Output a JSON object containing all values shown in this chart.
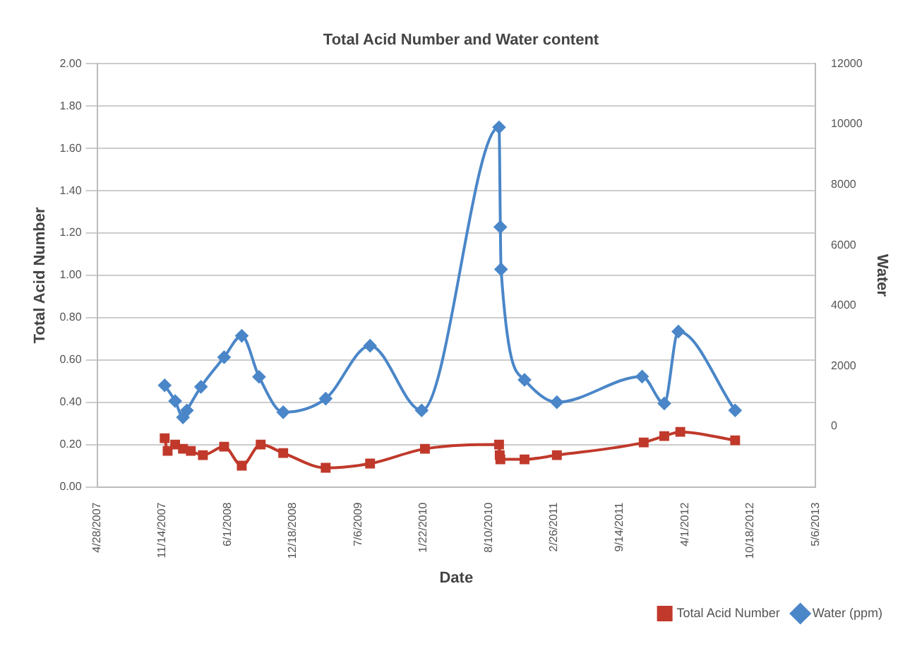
{
  "chart_data": {
    "type": "line",
    "title": "Total Acid Number and Water content",
    "xlabel": "Date",
    "ylabel": "Total Acid Number",
    "y2label": "Water",
    "grid": "y",
    "legend": "bottom right",
    "xlim": [
      "2007-04-28",
      "2013-05-06"
    ],
    "xticks": [
      {
        "value": "2007-04-28",
        "label": "4/28/2007"
      },
      {
        "value": "2007-11-14",
        "label": "11/14/2007"
      },
      {
        "value": "2008-06-01",
        "label": "6/1/2008"
      },
      {
        "value": "2008-12-18",
        "label": "12/18/2008"
      },
      {
        "value": "2009-07-06",
        "label": "7/6/2009"
      },
      {
        "value": "2010-01-22",
        "label": "1/22/2010"
      },
      {
        "value": "2010-08-10",
        "label": "8/10/2010"
      },
      {
        "value": "2011-02-26",
        "label": "2/26/2011"
      },
      {
        "value": "2011-09-14",
        "label": "9/14/2011"
      },
      {
        "value": "2012-04-01",
        "label": "4/1/2012"
      },
      {
        "value": "2012-10-18",
        "label": "10/18/2012"
      },
      {
        "value": "2013-05-06",
        "label": "5/6/2013"
      }
    ],
    "ylim": [
      0,
      2
    ],
    "yticks": [
      {
        "value": 0,
        "label": "0.00"
      },
      {
        "value": 0.2,
        "label": "0.20"
      },
      {
        "value": 0.4,
        "label": "0.40"
      },
      {
        "value": 0.6,
        "label": "0.60"
      },
      {
        "value": 0.8,
        "label": "0.80"
      },
      {
        "value": 1,
        "label": "1.00"
      },
      {
        "value": 1.2,
        "label": "1.20"
      },
      {
        "value": 1.4,
        "label": "1.40"
      },
      {
        "value": 1.6,
        "label": "1.60"
      },
      {
        "value": 1.8,
        "label": "1.80"
      },
      {
        "value": 2,
        "label": "2.00"
      }
    ],
    "y2lim": [
      -2000,
      12000
    ],
    "y2ticks": [
      0,
      2000,
      4000,
      6000,
      8000,
      10000,
      12000
    ],
    "series": [
      {
        "name": "Total Acid Number",
        "color": "#c0392b",
        "marker": "square",
        "x": [
          "2007-11-21",
          "2007-11-30",
          "2007-12-23",
          "2008-01-16",
          "2008-02-09",
          "2008-03-17",
          "2008-05-21",
          "2008-07-14",
          "2008-09-10",
          "2008-11-18",
          "2009-03-28",
          "2009-08-11",
          "2010-01-26",
          "2010-09-10",
          "2010-09-12",
          "2010-09-14",
          "2010-11-27",
          "2011-03-06",
          "2011-11-27",
          "2012-01-29",
          "2012-03-18",
          "2012-09-02"
        ],
        "values": [
          0.23,
          0.17,
          0.2,
          0.18,
          0.17,
          0.15,
          0.19,
          0.1,
          0.2,
          0.16,
          0.09,
          0.11,
          0.18,
          0.2,
          0.15,
          0.13,
          0.13,
          0.15,
          0.21,
          0.24,
          0.26,
          0.22
        ]
      },
      {
        "name": "Water (ppm)",
        "color": "#4a86c8",
        "marker": "diamond",
        "axis": "y2",
        "x": [
          "2007-11-21",
          "2007-12-23",
          "2008-01-16",
          "2008-01-28",
          "2008-03-11",
          "2008-05-21",
          "2008-07-14",
          "2008-09-05",
          "2008-11-18",
          "2009-03-28",
          "2009-08-11",
          "2010-01-16",
          "2010-09-10",
          "2010-09-14",
          "2010-09-16",
          "2010-11-27",
          "2011-03-06",
          "2011-11-22",
          "2012-01-29",
          "2012-03-12",
          "2012-09-02"
        ],
        "values": [
          1360,
          840,
          300,
          530,
          1310,
          2290,
          3000,
          1640,
          470,
          920,
          2670,
          530,
          9900,
          6600,
          5200,
          1540,
          800,
          1650,
          760,
          3140,
          530
        ]
      }
    ]
  }
}
